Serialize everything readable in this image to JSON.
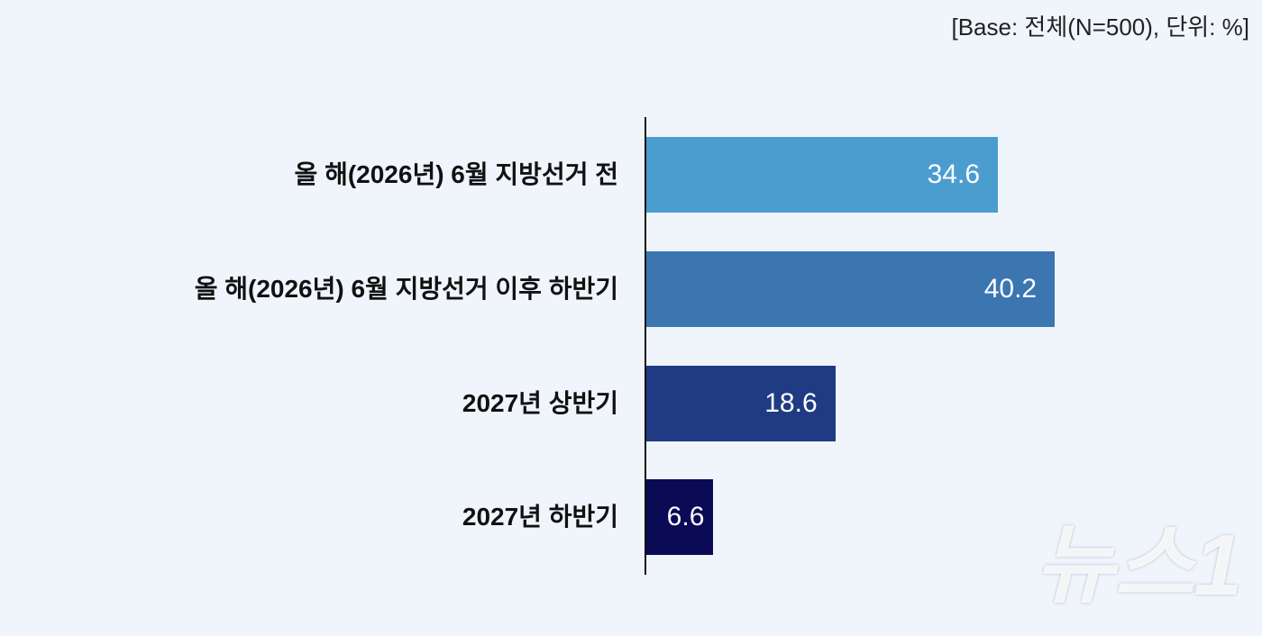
{
  "chart_data": {
    "type": "bar",
    "orientation": "horizontal",
    "note": "[Base:  전체(N=500),  단위:  %]",
    "categories": [
      "올 해(2026년) 6월 지방선거 전",
      "올 해(2026년) 6월 지방선거 이후 하반기",
      "2027년 상반기",
      "2027년 하반기"
    ],
    "values": [
      34.6,
      40.2,
      18.6,
      6.6
    ],
    "colors": [
      "#4b9dd0",
      "#3b76b1",
      "#1f3b83",
      "#0a0a55"
    ],
    "xlim": [
      0,
      60
    ],
    "grid": false
  },
  "watermark": "뉴스1"
}
